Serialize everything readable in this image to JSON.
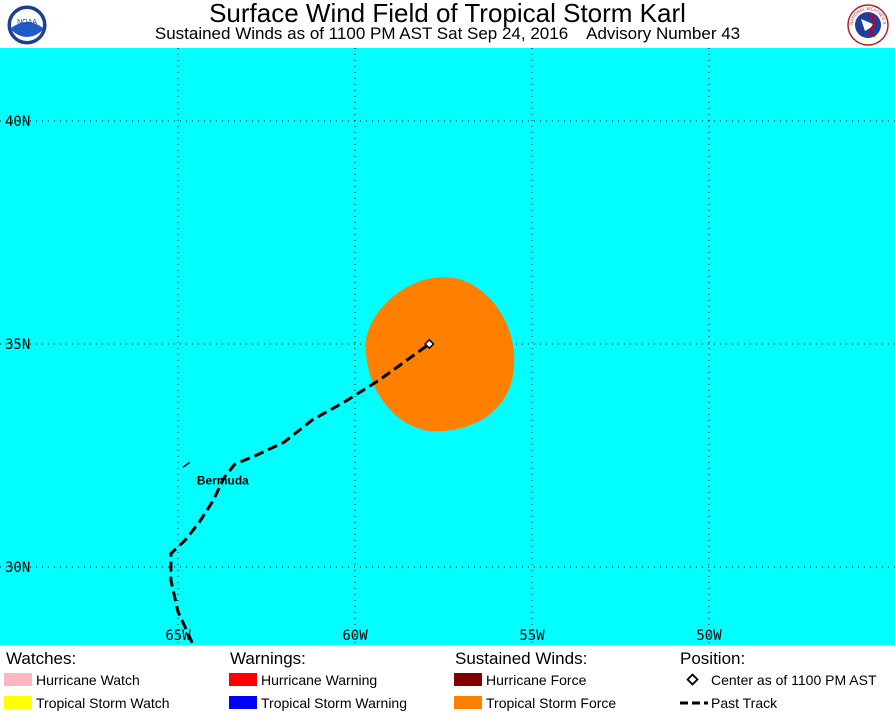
{
  "header": {
    "title": "Surface Wind Field of Tropical Storm Karl",
    "subtitle": "Sustained Winds as of 1100 PM AST Sat Sep 24, 2016    Advisory Number 43",
    "logo_left_text": "NOAA",
    "logo_right_text": "NATIONAL WEATHER SERVICE"
  },
  "map": {
    "ocean_color": "#00FFFF",
    "grid": true,
    "lat_labels": [
      {
        "lat": 40,
        "text": "40N"
      },
      {
        "lat": 35,
        "text": "35N"
      },
      {
        "lat": 30,
        "text": "30N"
      }
    ],
    "lon_labels": [
      {
        "lon": -65,
        "text": "65W"
      },
      {
        "lon": -60,
        "text": "60W"
      },
      {
        "lon": -55,
        "text": "55W"
      },
      {
        "lon": -50,
        "text": "50W"
      }
    ],
    "place_label": "Bermuda",
    "storm_center": {
      "lat": 35.0,
      "lon": -57.9
    },
    "ts_wind_color": "#FF8000",
    "ts_wind_extent": {
      "north_lat": 36.5,
      "south_lat": 33.0,
      "west_lon": -59.7,
      "east_lon": -55.5
    },
    "past_track": [
      [
        -64.6,
        28.3
      ],
      [
        -65.0,
        29.0
      ],
      [
        -65.2,
        29.7
      ],
      [
        -65.2,
        30.3
      ],
      [
        -64.8,
        30.6
      ],
      [
        -64.4,
        31.0
      ],
      [
        -64.0,
        31.5
      ],
      [
        -63.7,
        32.0
      ],
      [
        -63.4,
        32.3
      ],
      [
        -62.8,
        32.5
      ],
      [
        -62.0,
        32.8
      ],
      [
        -61.2,
        33.3
      ],
      [
        -60.3,
        33.7
      ],
      [
        -59.3,
        34.2
      ],
      [
        -58.6,
        34.6
      ],
      [
        -57.9,
        35.0
      ]
    ]
  },
  "legend": {
    "watches": {
      "heading": "Watches:",
      "items": [
        {
          "label": "Hurricane Watch",
          "color": "#FFB6C1"
        },
        {
          "label": "Tropical Storm Watch",
          "color": "#FFFF00"
        }
      ]
    },
    "warnings": {
      "heading": "Warnings:",
      "items": [
        {
          "label": "Hurricane Warning",
          "color": "#FF0000"
        },
        {
          "label": "Tropical Storm Warning",
          "color": "#0000FF"
        }
      ]
    },
    "winds": {
      "heading": "Sustained Winds:",
      "items": [
        {
          "label": "Hurricane Force",
          "color": "#800000"
        },
        {
          "label": "Tropical Storm Force",
          "color": "#FF8000"
        }
      ]
    },
    "position": {
      "heading": "Position:",
      "center_label": "Center as of 1100 PM AST",
      "track_label": "Past Track"
    }
  }
}
